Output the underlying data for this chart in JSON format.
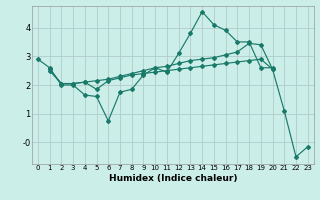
{
  "xlabel": "Humidex (Indice chaleur)",
  "background_color": "#cceee8",
  "grid_color": "#b0cccc",
  "line_color": "#1a7a6a",
  "x_ticks": [
    0,
    1,
    2,
    3,
    4,
    5,
    6,
    7,
    8,
    9,
    10,
    11,
    12,
    13,
    14,
    15,
    16,
    17,
    18,
    19,
    20,
    21,
    22,
    23
  ],
  "ylim": [
    -0.75,
    4.75
  ],
  "xlim": [
    -0.5,
    23.5
  ],
  "series": [
    {
      "x": [
        0,
        1,
        2,
        3,
        4,
        5,
        6,
        7,
        8,
        9,
        10,
        11,
        12,
        13,
        14,
        15,
        16,
        17,
        18,
        19,
        20
      ],
      "y": [
        2.9,
        2.6,
        2.0,
        2.0,
        1.65,
        1.6,
        0.75,
        1.75,
        1.85,
        2.35,
        2.6,
        2.45,
        3.1,
        3.8,
        4.55,
        4.1,
        3.9,
        3.5,
        3.5,
        2.6,
        2.6
      ]
    },
    {
      "x": [
        1,
        2,
        3,
        4,
        5,
        6,
        7,
        8,
        9,
        10,
        11,
        12,
        13,
        14,
        15,
        16,
        17,
        18,
        19,
        20,
        21,
        22,
        23
      ],
      "y": [
        2.55,
        2.05,
        2.05,
        2.1,
        2.15,
        2.2,
        2.3,
        2.4,
        2.5,
        2.6,
        2.65,
        2.75,
        2.85,
        2.9,
        2.95,
        3.05,
        3.15,
        3.45,
        3.4,
        2.55,
        1.1,
        -0.5,
        -0.15
      ]
    },
    {
      "x": [
        1,
        2,
        3,
        4,
        5,
        6,
        7,
        8,
        9,
        10,
        11,
        12,
        13,
        14,
        15,
        16,
        17,
        18,
        19,
        20
      ],
      "y": [
        2.5,
        2.05,
        2.05,
        2.1,
        1.85,
        2.15,
        2.25,
        2.35,
        2.4,
        2.45,
        2.5,
        2.55,
        2.6,
        2.65,
        2.7,
        2.75,
        2.8,
        2.85,
        2.9,
        2.55
      ]
    }
  ]
}
